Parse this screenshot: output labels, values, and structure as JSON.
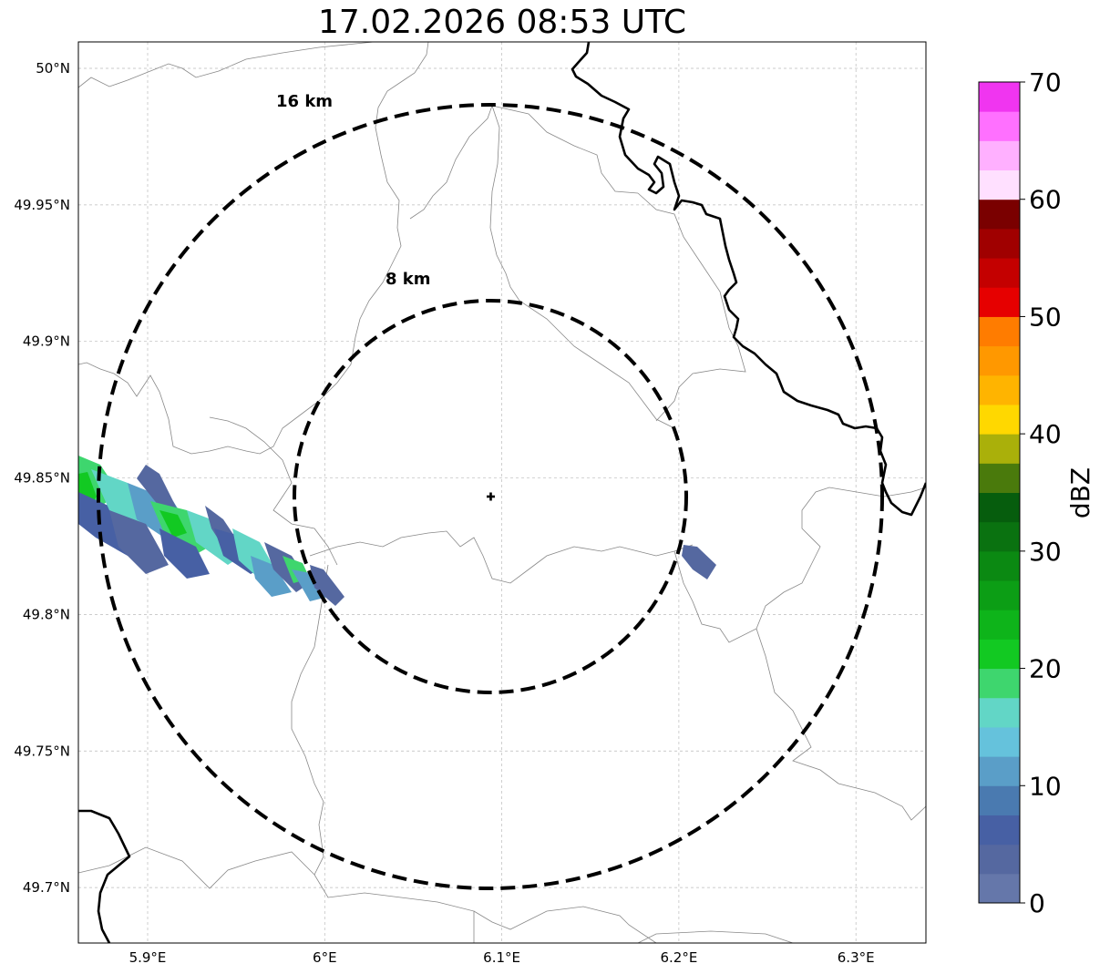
{
  "title": "17.02.2026 08:53 UTC",
  "map": {
    "lon_range": [
      5.86,
      6.34
    ],
    "lat_range": [
      49.68,
      50.01
    ],
    "lon_ticks": [
      {
        "value": 5.9,
        "label": "5.9°E"
      },
      {
        "value": 6.0,
        "label": "6°E"
      },
      {
        "value": 6.1,
        "label": "6.1°E"
      },
      {
        "value": 6.2,
        "label": "6.2°E"
      },
      {
        "value": 6.3,
        "label": "6.3°E"
      }
    ],
    "lat_ticks": [
      {
        "value": 50.0,
        "label": "50°N"
      },
      {
        "value": 49.95,
        "label": "49.95°N"
      },
      {
        "value": 49.9,
        "label": "49.9°N"
      },
      {
        "value": 49.85,
        "label": "49.85°N"
      },
      {
        "value": 49.8,
        "label": "49.8°N"
      },
      {
        "value": 49.75,
        "label": "49.75°N"
      },
      {
        "value": 49.7,
        "label": "49.7°N"
      }
    ],
    "radar_center": {
      "lon": 6.096,
      "lat": 49.843
    },
    "rings": [
      {
        "radius_km": 8,
        "label": "8 km"
      },
      {
        "radius_km": 16,
        "label": "16 km"
      }
    ]
  },
  "colorbar": {
    "label": "dBZ",
    "min": 0,
    "max": 70,
    "ticks": [
      {
        "value": 0,
        "label": "0"
      },
      {
        "value": 10,
        "label": "10"
      },
      {
        "value": 20,
        "label": "20"
      },
      {
        "value": 30,
        "label": "30"
      },
      {
        "value": 40,
        "label": "40"
      },
      {
        "value": 50,
        "label": "50"
      },
      {
        "value": 60,
        "label": "60"
      },
      {
        "value": 70,
        "label": "70"
      }
    ],
    "colors": [
      "#6577aa",
      "#5568a0",
      "#4760a4",
      "#4a7ab0",
      "#5a9ec8",
      "#65c2dc",
      "#62d6c6",
      "#3ed66e",
      "#12c922",
      "#0eb41a",
      "#0c9e15",
      "#0b8912",
      "#0a7210",
      "#065d0d",
      "#4a7a0c",
      "#aab00a",
      "#ffd800",
      "#ffb400",
      "#ff9800",
      "#ff7c00",
      "#e60000",
      "#c40000",
      "#a00000",
      "#7a0000",
      "#ffe0ff",
      "#ffb0ff",
      "#ff70ff",
      "#f035f0"
    ]
  },
  "echo_colors": {
    "weak": "#5568a0",
    "blue": "#4760a4",
    "light": "#5a9ec8",
    "cyan": "#62d6c6",
    "green": "#3ed66e",
    "bright": "#12c922"
  }
}
